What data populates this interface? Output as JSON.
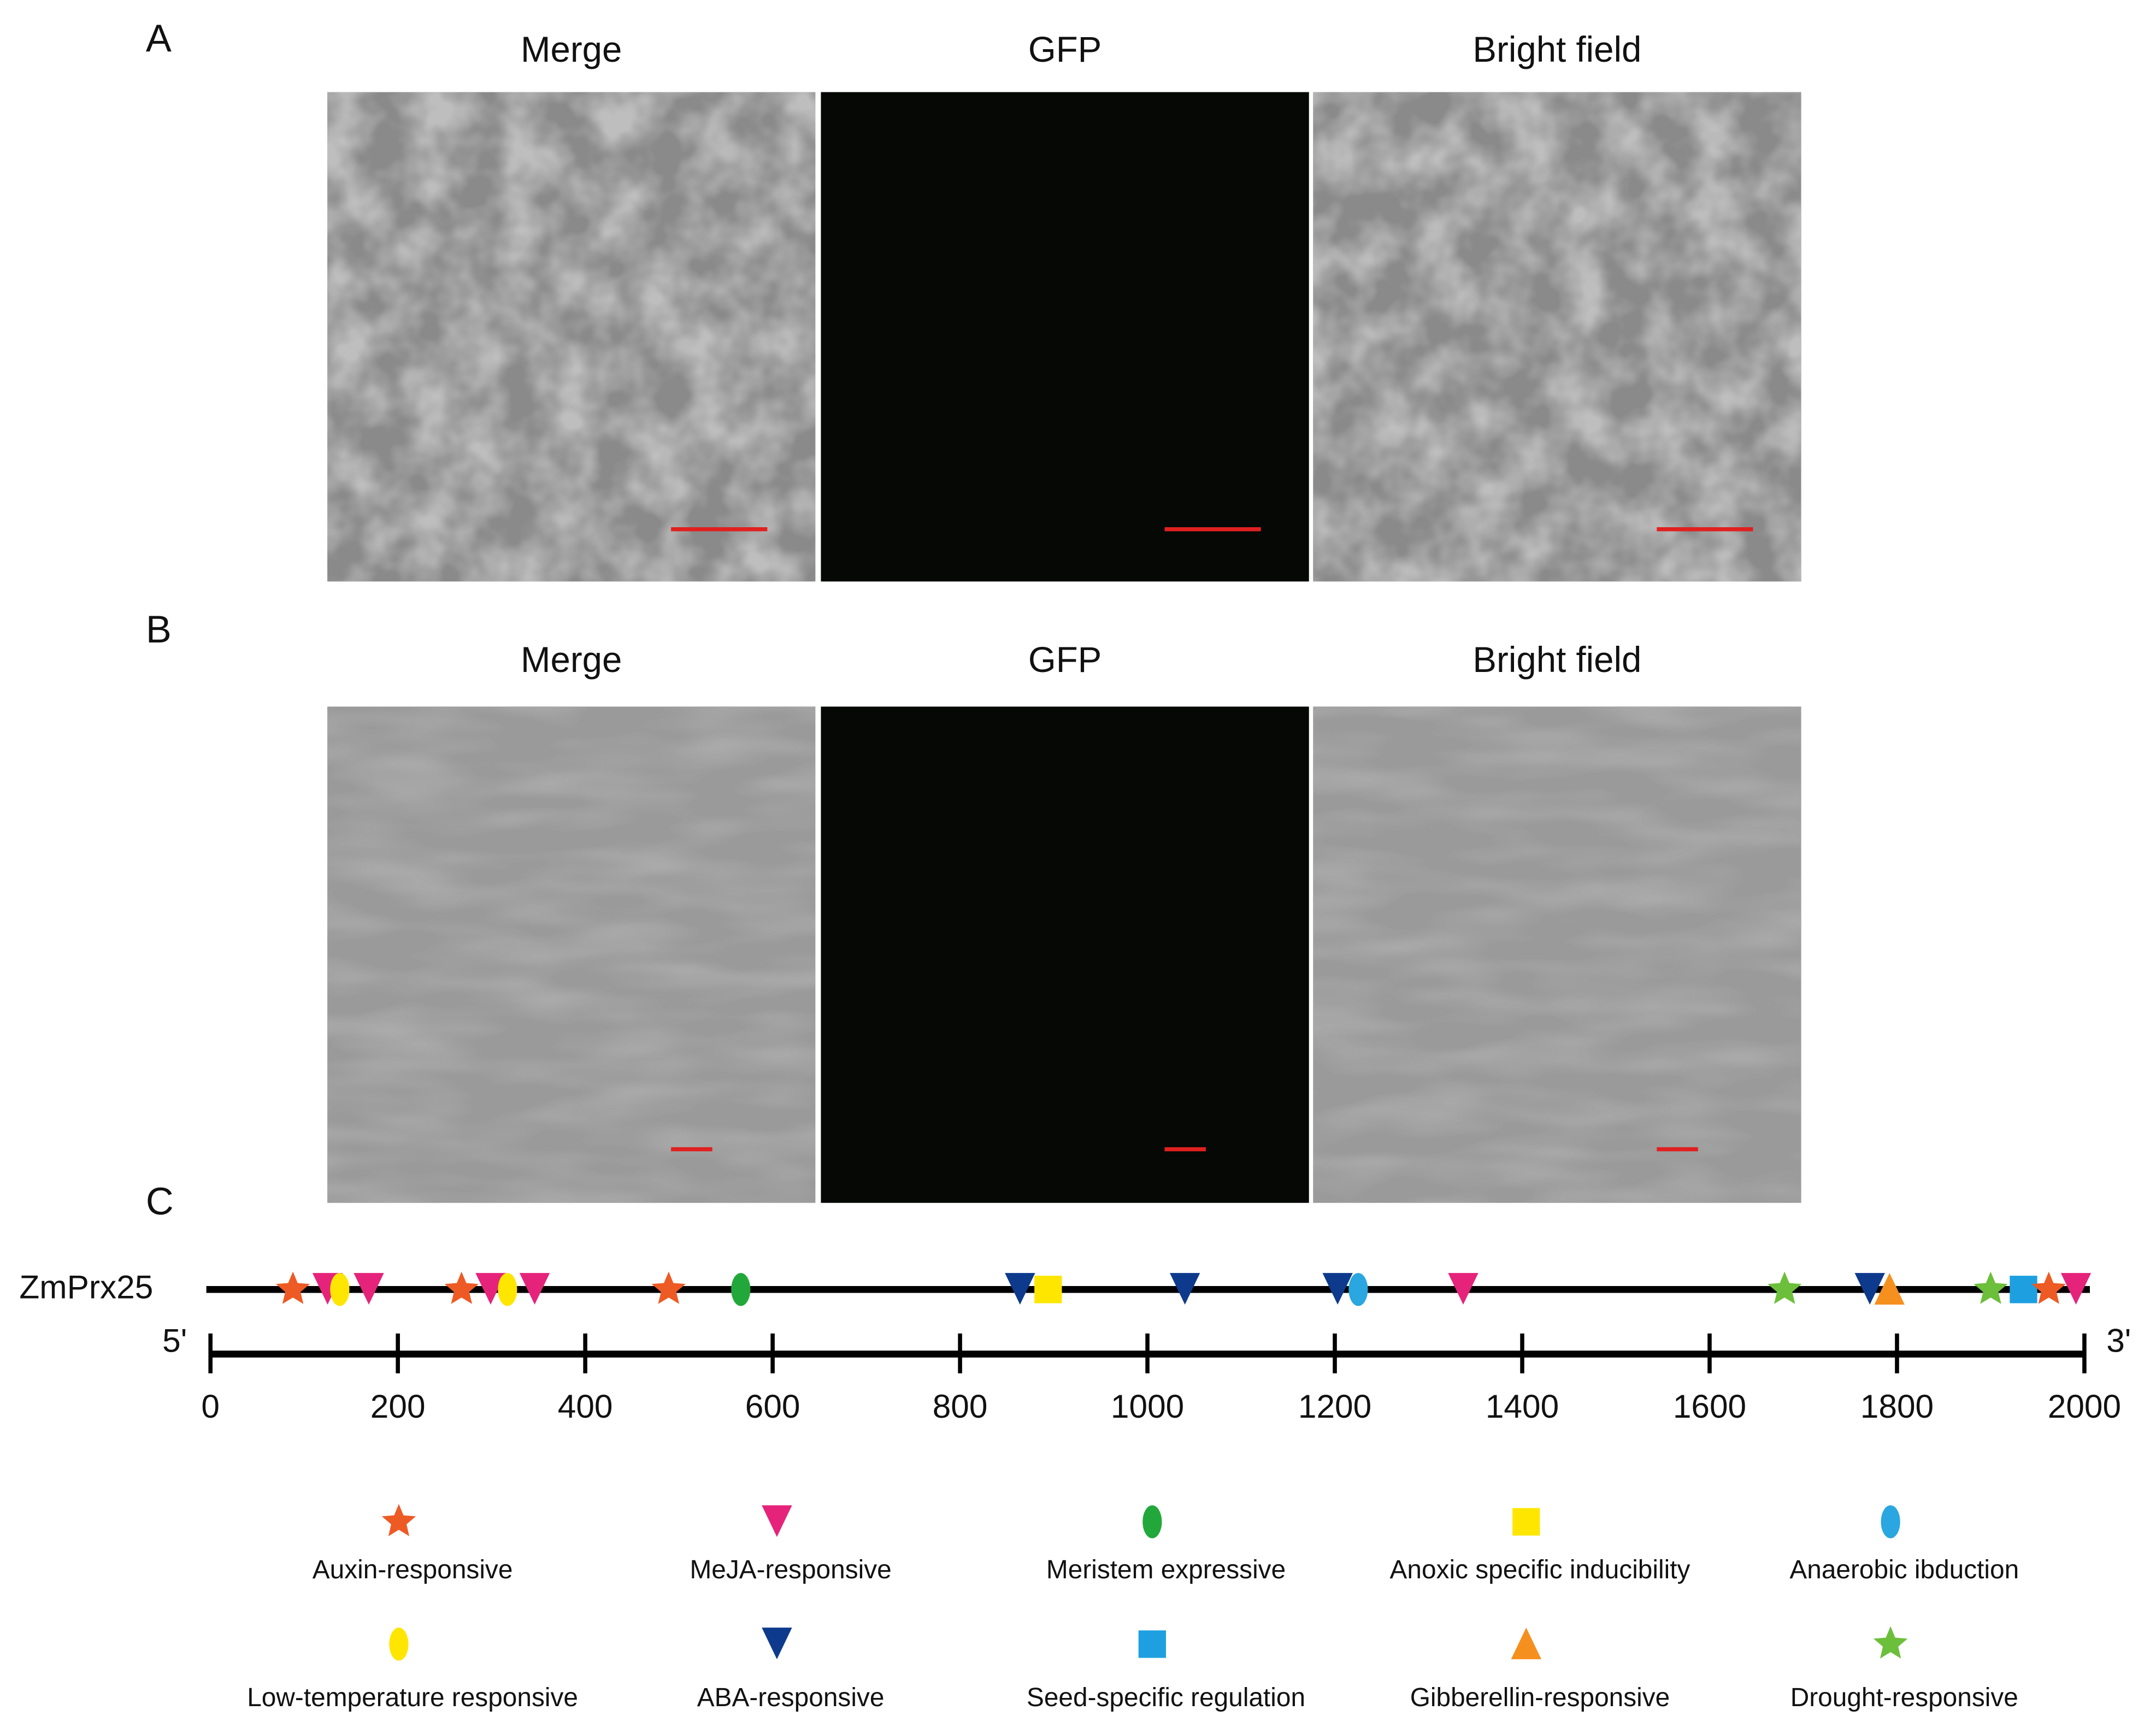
{
  "panels": [
    {
      "label": "A",
      "columns": [
        "Merge",
        "GFP",
        "Bright field"
      ]
    },
    {
      "label": "B",
      "columns": [
        "Merge",
        "GFP",
        "Bright field"
      ]
    }
  ],
  "promoter_map": {
    "label": "C",
    "gene": "ZmPrx25",
    "five_prime": "5'",
    "three_prime": "3'",
    "xlim": [
      0,
      2000
    ],
    "xticks": [
      0,
      200,
      400,
      600,
      800,
      1000,
      1200,
      1400,
      1600,
      1800,
      2000
    ],
    "element_types": [
      {
        "name": "Auxin-responsive",
        "color": "#ee5a24",
        "shape": "star"
      },
      {
        "name": "MeJA-responsive",
        "color": "#e6237a",
        "shape": "triangle-down"
      },
      {
        "name": "Meristem expressive",
        "color": "#22a83a",
        "shape": "ellipse"
      },
      {
        "name": "Anoxic specific inducibility",
        "color": "#ffe600",
        "shape": "square"
      },
      {
        "name": "Anaerobic ibduction",
        "color": "#2aa6e0",
        "shape": "ellipse"
      },
      {
        "name": "Low-temperature responsive",
        "color": "#ffe600",
        "shape": "ellipse"
      },
      {
        "name": "ABA-responsive",
        "color": "#0d3a8c",
        "shape": "triangle-down"
      },
      {
        "name": "Seed-specific regulation",
        "color": "#1ea0e0",
        "shape": "square"
      },
      {
        "name": "Gibberellin-responsive",
        "color": "#f5901e",
        "shape": "triangle-up"
      },
      {
        "name": "Drought-responsive",
        "color": "#6cbf3a",
        "shape": "star"
      }
    ],
    "elements": [
      {
        "type": "Auxin-responsive",
        "position": 88
      },
      {
        "type": "MeJA-responsive",
        "position": 125
      },
      {
        "type": "Low-temperature responsive",
        "position": 138
      },
      {
        "type": "MeJA-responsive",
        "position": 169
      },
      {
        "type": "Auxin-responsive",
        "position": 268
      },
      {
        "type": "MeJA-responsive",
        "position": 299
      },
      {
        "type": "Low-temperature responsive",
        "position": 317
      },
      {
        "type": "MeJA-responsive",
        "position": 346
      },
      {
        "type": "Auxin-responsive",
        "position": 489
      },
      {
        "type": "Meristem expressive",
        "position": 566
      },
      {
        "type": "ABA-responsive",
        "position": 864
      },
      {
        "type": "Anoxic specific inducibility",
        "position": 894
      },
      {
        "type": "ABA-responsive",
        "position": 1040
      },
      {
        "type": "ABA-responsive",
        "position": 1203
      },
      {
        "type": "Anaerobic ibduction",
        "position": 1225
      },
      {
        "type": "MeJA-responsive",
        "position": 1337
      },
      {
        "type": "Drought-responsive",
        "position": 1680
      },
      {
        "type": "ABA-responsive",
        "position": 1771
      },
      {
        "type": "Gibberellin-responsive",
        "position": 1792
      },
      {
        "type": "Drought-responsive",
        "position": 1900
      },
      {
        "type": "Seed-specific regulation",
        "position": 1935
      },
      {
        "type": "Auxin-responsive",
        "position": 1962
      },
      {
        "type": "MeJA-responsive",
        "position": 1991
      }
    ]
  }
}
